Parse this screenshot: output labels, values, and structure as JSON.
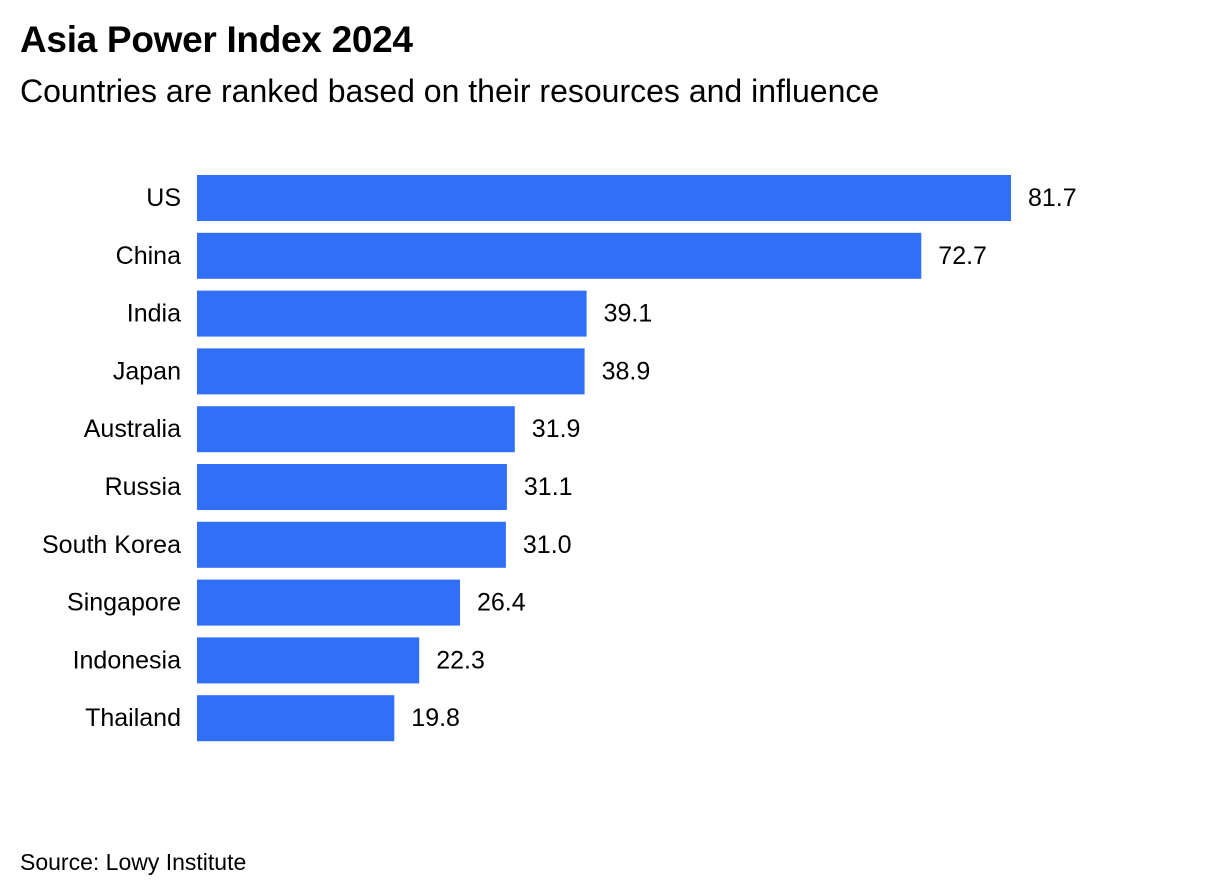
{
  "header": {
    "title": "Asia Power Index 2024",
    "subtitle": "Countries are ranked based on their resources and influence"
  },
  "footer": {
    "source": "Source: Lowy Institute"
  },
  "chart_data": {
    "type": "bar",
    "orientation": "horizontal",
    "title": "Asia Power Index 2024",
    "subtitle": "Countries are ranked based on their resources and influence",
    "categories": [
      "US",
      "China",
      "India",
      "Japan",
      "Australia",
      "Russia",
      "South Korea",
      "Singapore",
      "Indonesia",
      "Thailand"
    ],
    "values": [
      81.7,
      72.7,
      39.1,
      38.9,
      31.9,
      31.1,
      31.0,
      26.4,
      22.3,
      19.8
    ],
    "value_labels": [
      "81.7",
      "72.7",
      "39.1",
      "38.9",
      "31.9",
      "31.1",
      "31.0",
      "26.4",
      "22.3",
      "19.8"
    ],
    "xlim": [
      0,
      81.7
    ],
    "grid": false,
    "legend": "none",
    "bar_color": "#3170F6",
    "source": "Source: Lowy Institute"
  }
}
